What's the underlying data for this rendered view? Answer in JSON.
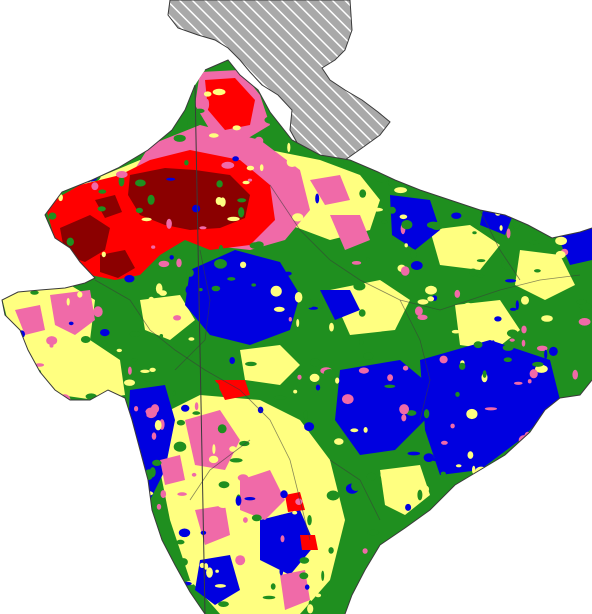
{
  "map": {
    "background_color": "#ffffff",
    "boundary_color": "#3a3a3a",
    "excluded_region": {
      "fill": "#a9a9a9",
      "hatch_color": "#ffffff",
      "pattern": "diagonal-hatch"
    },
    "zone_colors": {
      "base": "#1f8f1f",
      "blue": "#0000e0",
      "yellow": "#ffff80",
      "pink": "#f06aa8",
      "red": "#ff0000",
      "dark_red": "#8b0000"
    }
  }
}
